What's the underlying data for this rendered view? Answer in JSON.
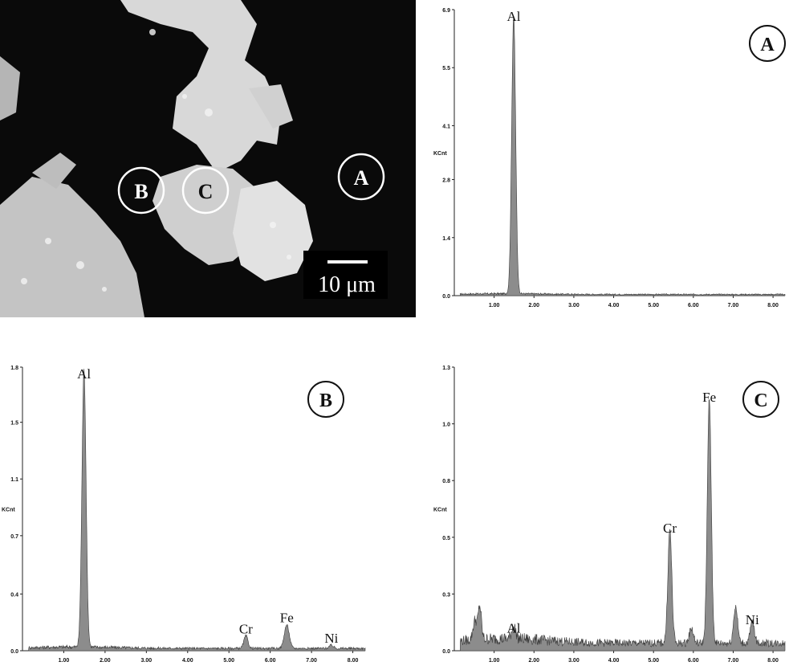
{
  "micrograph": {
    "markers": [
      "A",
      "B",
      "C"
    ],
    "scale_bar_label": "10 μm"
  },
  "chart_data": [
    {
      "type": "area",
      "panel_label": "A",
      "xlabel": "",
      "ylabel": "KCnt",
      "xlim": [
        0,
        8.3
      ],
      "ylim": [
        0,
        6.9
      ],
      "x_ticks": [
        "1.00",
        "2.00",
        "3.00",
        "4.00",
        "5.00",
        "6.00",
        "7.00",
        "8.00"
      ],
      "y_ticks": [
        {
          "value": 0,
          "label": "0.0"
        },
        {
          "value": 1.4,
          "label": "1.4"
        },
        {
          "value": 2.8,
          "label": "2.8"
        },
        {
          "value": 4.1,
          "label": "4.1"
        },
        {
          "value": 5.5,
          "label": "5.5"
        },
        {
          "value": 6.9,
          "label": "6.9"
        }
      ],
      "baseline": 0.03,
      "peaks": [
        {
          "element": "Al",
          "energy": 1.49,
          "height": 6.7,
          "width": 0.05
        }
      ],
      "labels": [
        {
          "text": "Al",
          "energy": 1.49,
          "height": 6.7
        }
      ]
    },
    {
      "type": "area",
      "panel_label": "B",
      "xlabel": "",
      "ylabel": "KCnt",
      "xlim": [
        0,
        8.3
      ],
      "ylim": [
        0,
        1.8
      ],
      "x_ticks": [
        "1.00",
        "2.00",
        "3.00",
        "4.00",
        "5.00",
        "6.00",
        "7.00",
        "8.00"
      ],
      "y_ticks": [
        {
          "value": 0,
          "label": "0.0"
        },
        {
          "value": 0.36,
          "label": "0.4"
        },
        {
          "value": 0.73,
          "label": "0.7"
        },
        {
          "value": 1.09,
          "label": "1.1"
        },
        {
          "value": 1.45,
          "label": "1.5"
        },
        {
          "value": 1.8,
          "label": "1.8"
        }
      ],
      "baseline": 0.015,
      "peaks": [
        {
          "element": "Al",
          "energy": 1.49,
          "height": 1.76,
          "width": 0.05
        },
        {
          "element": "Cr",
          "energy": 5.41,
          "height": 0.08,
          "width": 0.05
        },
        {
          "element": "Fe",
          "energy": 6.4,
          "height": 0.15,
          "width": 0.06
        },
        {
          "element": "Ni",
          "energy": 7.48,
          "height": 0.02,
          "width": 0.05
        }
      ],
      "labels": [
        {
          "text": "Al",
          "energy": 1.49,
          "height": 1.76
        },
        {
          "text": "Cr",
          "energy": 5.41,
          "height": 0.08
        },
        {
          "text": "Fe",
          "energy": 6.4,
          "height": 0.15
        },
        {
          "text": "Ni",
          "energy": 7.48,
          "height": 0.02
        }
      ]
    },
    {
      "type": "area",
      "panel_label": "C",
      "xlabel": "",
      "ylabel": "KCnt",
      "xlim": [
        0,
        8.3
      ],
      "ylim": [
        0,
        1.3
      ],
      "x_ticks": [
        "1.00",
        "2.00",
        "3.00",
        "4.00",
        "5.00",
        "6.00",
        "7.00",
        "8.00"
      ],
      "y_ticks": [
        {
          "value": 0,
          "label": "0.0"
        },
        {
          "value": 0.26,
          "label": "0.3"
        },
        {
          "value": 0.52,
          "label": "0.5"
        },
        {
          "value": 0.78,
          "label": "0.8"
        },
        {
          "value": 1.04,
          "label": "1.0"
        },
        {
          "value": 1.3,
          "label": "1.3"
        }
      ],
      "baseline": 0.035,
      "peaks": [
        {
          "element": "",
          "energy": 0.52,
          "height": 0.09,
          "width": 0.05
        },
        {
          "element": "",
          "energy": 0.64,
          "height": 0.15,
          "width": 0.04
        },
        {
          "element": "Al",
          "energy": 1.49,
          "height": 0.06,
          "width": 0.05
        },
        {
          "element": "Cr",
          "energy": 5.41,
          "height": 0.52,
          "width": 0.05
        },
        {
          "element": "",
          "energy": 5.95,
          "height": 0.07,
          "width": 0.05
        },
        {
          "element": "Fe",
          "energy": 6.4,
          "height": 1.12,
          "width": 0.05
        },
        {
          "element": "",
          "energy": 7.06,
          "height": 0.17,
          "width": 0.05
        },
        {
          "element": "Ni",
          "energy": 7.48,
          "height": 0.1,
          "width": 0.05
        }
      ],
      "labels": [
        {
          "text": "Al",
          "energy": 1.49,
          "height": 0.06
        },
        {
          "text": "Cr",
          "energy": 5.41,
          "height": 0.52
        },
        {
          "text": "Fe",
          "energy": 6.4,
          "height": 1.12
        },
        {
          "text": "Ni",
          "energy": 7.48,
          "height": 0.1
        }
      ]
    }
  ]
}
